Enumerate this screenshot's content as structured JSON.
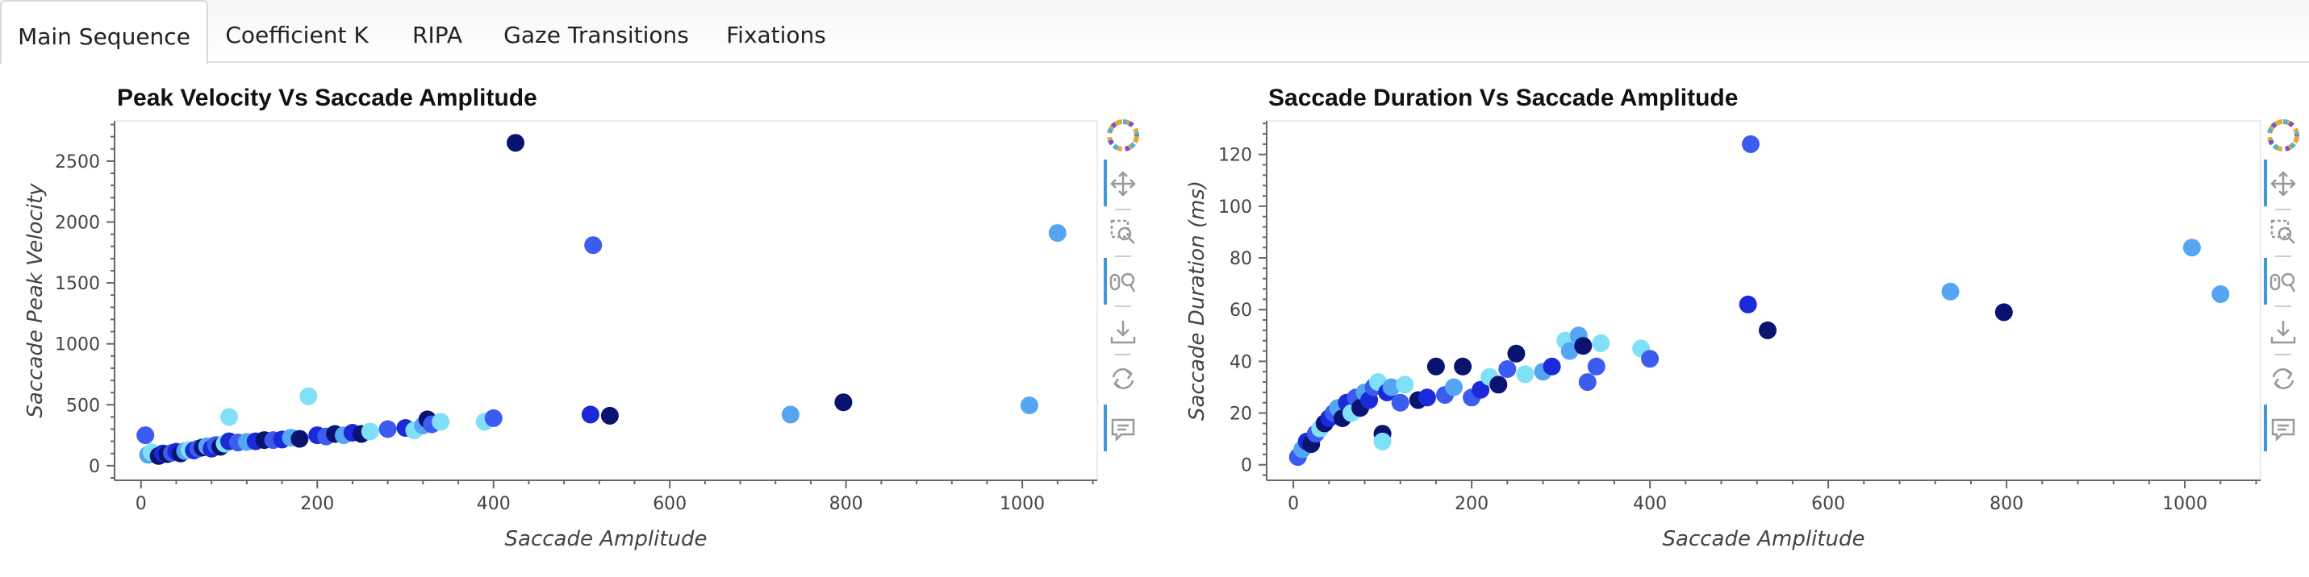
{
  "tabs": [
    {
      "label": "Main Sequence",
      "active": true
    },
    {
      "label": "Coefficient K",
      "active": false
    },
    {
      "label": "RIPA",
      "active": false
    },
    {
      "label": "Gaze Transitions",
      "active": false
    },
    {
      "label": "Fixations",
      "active": false
    }
  ],
  "toolbar_icons": [
    "bokeh-logo-icon",
    "pan-icon",
    "box-zoom-icon",
    "wheel-zoom-icon",
    "save-icon",
    "reset-icon",
    "hover-icon"
  ],
  "chart_data": [
    {
      "type": "scatter",
      "title": "Peak Velocity Vs Saccade Amplitude",
      "xlabel": "Saccade Amplitude",
      "ylabel": "Saccade Peak Velocity",
      "xlim": [
        -30,
        1085
      ],
      "ylim": [
        -120,
        2830
      ],
      "xticks": [
        0,
        200,
        400,
        600,
        800,
        1000
      ],
      "yticks": [
        0,
        500,
        1000,
        1500,
        2000,
        2500
      ],
      "colors": [
        "#0a1470",
        "#1a2ad8",
        "#3c5cf0",
        "#55a6f2",
        "#7fe0f8"
      ],
      "points": [
        [
          5,
          250,
          2
        ],
        [
          8,
          90,
          3
        ],
        [
          12,
          110,
          4
        ],
        [
          20,
          80,
          0
        ],
        [
          25,
          100,
          1
        ],
        [
          30,
          95,
          0
        ],
        [
          35,
          105,
          2
        ],
        [
          40,
          115,
          1
        ],
        [
          45,
          100,
          0
        ],
        [
          50,
          120,
          3
        ],
        [
          55,
          130,
          4
        ],
        [
          60,
          125,
          1
        ],
        [
          65,
          140,
          2
        ],
        [
          70,
          150,
          0
        ],
        [
          75,
          160,
          3
        ],
        [
          80,
          140,
          1
        ],
        [
          85,
          170,
          2
        ],
        [
          90,
          155,
          0
        ],
        [
          95,
          180,
          4
        ],
        [
          100,
          200,
          1
        ],
        [
          100,
          400,
          4
        ],
        [
          110,
          190,
          2
        ],
        [
          120,
          195,
          3
        ],
        [
          130,
          200,
          1
        ],
        [
          140,
          210,
          0
        ],
        [
          150,
          210,
          2
        ],
        [
          160,
          215,
          1
        ],
        [
          170,
          230,
          3
        ],
        [
          180,
          220,
          0
        ],
        [
          190,
          570,
          4
        ],
        [
          200,
          250,
          1
        ],
        [
          210,
          240,
          2
        ],
        [
          220,
          260,
          0
        ],
        [
          230,
          250,
          3
        ],
        [
          240,
          270,
          1
        ],
        [
          250,
          260,
          0
        ],
        [
          260,
          280,
          4
        ],
        [
          280,
          300,
          2
        ],
        [
          300,
          310,
          1
        ],
        [
          310,
          290,
          4
        ],
        [
          320,
          330,
          3
        ],
        [
          325,
          380,
          0
        ],
        [
          330,
          340,
          2
        ],
        [
          340,
          360,
          4
        ],
        [
          390,
          360,
          4
        ],
        [
          400,
          390,
          2
        ],
        [
          425,
          2650,
          0
        ],
        [
          510,
          420,
          1
        ],
        [
          513,
          1810,
          2
        ],
        [
          532,
          410,
          0
        ],
        [
          737,
          420,
          3
        ],
        [
          797,
          520,
          0
        ],
        [
          1008,
          495,
          3
        ],
        [
          1040,
          1910,
          3
        ]
      ]
    },
    {
      "type": "scatter",
      "title": "Saccade Duration Vs Saccade Amplitude",
      "xlabel": "Saccade Amplitude",
      "ylabel": "Saccade Duration (ms)",
      "xlim": [
        -30,
        1085
      ],
      "ylim": [
        -6,
        133
      ],
      "xticks": [
        0,
        200,
        400,
        600,
        800,
        1000
      ],
      "yticks": [
        0,
        20,
        40,
        60,
        80,
        100,
        120
      ],
      "colors": [
        "#0a1470",
        "#1a2ad8",
        "#3c5cf0",
        "#55a6f2",
        "#7fe0f8"
      ],
      "points": [
        [
          5,
          3,
          2
        ],
        [
          10,
          6,
          3
        ],
        [
          15,
          9,
          1
        ],
        [
          20,
          8,
          0
        ],
        [
          25,
          12,
          2
        ],
        [
          30,
          14,
          4
        ],
        [
          35,
          16,
          0
        ],
        [
          40,
          18,
          1
        ],
        [
          45,
          20,
          2
        ],
        [
          50,
          22,
          3
        ],
        [
          55,
          18,
          0
        ],
        [
          60,
          24,
          1
        ],
        [
          65,
          20,
          4
        ],
        [
          70,
          26,
          2
        ],
        [
          75,
          22,
          0
        ],
        [
          80,
          28,
          3
        ],
        [
          85,
          25,
          1
        ],
        [
          90,
          30,
          2
        ],
        [
          95,
          32,
          4
        ],
        [
          100,
          12,
          0
        ],
        [
          100,
          9,
          4
        ],
        [
          105,
          28,
          1
        ],
        [
          110,
          30,
          3
        ],
        [
          120,
          24,
          2
        ],
        [
          125,
          31,
          4
        ],
        [
          140,
          25,
          0
        ],
        [
          150,
          26,
          1
        ],
        [
          160,
          38,
          0
        ],
        [
          170,
          27,
          2
        ],
        [
          180,
          30,
          3
        ],
        [
          190,
          38,
          0
        ],
        [
          200,
          26,
          2
        ],
        [
          210,
          29,
          1
        ],
        [
          220,
          34,
          4
        ],
        [
          230,
          31,
          0
        ],
        [
          240,
          37,
          2
        ],
        [
          250,
          43,
          0
        ],
        [
          260,
          35,
          4
        ],
        [
          280,
          36,
          3
        ],
        [
          290,
          38,
          1
        ],
        [
          305,
          48,
          4
        ],
        [
          310,
          44,
          3
        ],
        [
          320,
          50,
          3
        ],
        [
          325,
          46,
          0
        ],
        [
          330,
          32,
          2
        ],
        [
          340,
          38,
          2
        ],
        [
          345,
          47,
          4
        ],
        [
          390,
          45,
          4
        ],
        [
          400,
          41,
          2
        ],
        [
          510,
          62,
          1
        ],
        [
          513,
          124,
          2
        ],
        [
          532,
          52,
          0
        ],
        [
          737,
          67,
          3
        ],
        [
          797,
          59,
          0
        ],
        [
          1008,
          84,
          3
        ],
        [
          1040,
          66,
          3
        ]
      ]
    }
  ]
}
